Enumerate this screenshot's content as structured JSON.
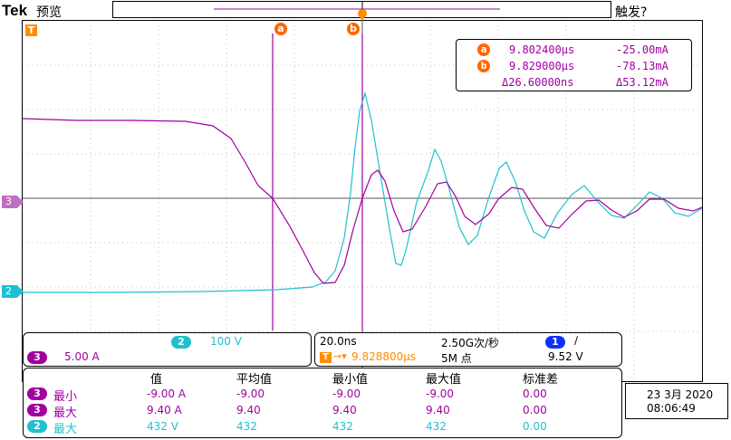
{
  "header": {
    "brand": "Tek",
    "mode": "预览",
    "trigger_status": "触发?"
  },
  "trigger_bar": {
    "marker": "T"
  },
  "cursors": {
    "a": {
      "label": "a",
      "time": "9.802400µs",
      "value": "-25.00mA"
    },
    "b": {
      "label": "b",
      "time": "9.829000µs",
      "value": "-78.13mA"
    },
    "delta": {
      "time": "Δ26.60000ns",
      "value": "Δ53.12mA"
    }
  },
  "channels": {
    "ch3": {
      "marker": "3",
      "scale": "5.00 A",
      "color": "#a000a0"
    },
    "ch2": {
      "marker": "2",
      "scale": "100 V",
      "color": "#20c0d0"
    }
  },
  "timebase": {
    "scale": "20.0ns",
    "sample_rate": "2.50G次/秒",
    "record_length": "5M 点",
    "trigger_pos": "9.828800µs",
    "trigger_channel": "1",
    "trigger_slope": "∕",
    "trigger_level": "9.52 V"
  },
  "measurements": {
    "headers": [
      "值",
      "平均值",
      "最小值",
      "最大值",
      "标准差"
    ],
    "rows": [
      {
        "ch": "3",
        "type": "最小",
        "value": "-9.00 A",
        "mean": "-9.00",
        "min": "-9.00",
        "max": "-9.00",
        "std": "0.00"
      },
      {
        "ch": "3",
        "type": "最大",
        "value": "9.40 A",
        "mean": "9.40",
        "min": "9.40",
        "max": "9.40",
        "std": "0.00"
      },
      {
        "ch": "2",
        "type": "最大",
        "value": "432 V",
        "mean": "432",
        "min": "432",
        "max": "432",
        "std": "0.00"
      }
    ]
  },
  "datetime": {
    "date": "23 3月 2020",
    "time": "08:06:49"
  },
  "colors": {
    "ch3": "#a000a0",
    "ch2": "#20c0d0",
    "trigger": "#ff8c00",
    "cursor": "#ff6600",
    "ch1": "#1030ff"
  }
}
